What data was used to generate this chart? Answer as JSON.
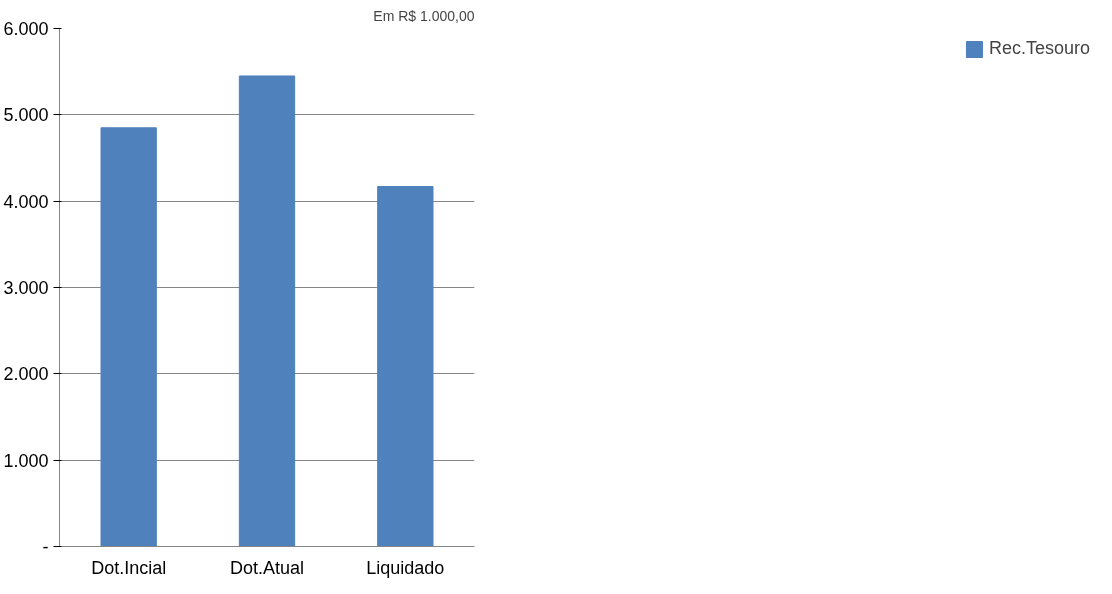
{
  "chart_data": {
    "type": "bar",
    "categories": [
      "Dot.Incial",
      "Dot.Atual",
      "Liquidado"
    ],
    "series": [
      {
        "name": "Rec.Tesouro",
        "color": "#4f81bd",
        "values": [
          4850,
          5450,
          4170
        ]
      }
    ],
    "ylim": [
      0,
      6000
    ],
    "yticks": [
      {
        "value": 0,
        "label": "-"
      },
      {
        "value": 1000,
        "label": "1.000"
      },
      {
        "value": 2000,
        "label": "2.000"
      },
      {
        "value": 3000,
        "label": "3.000"
      },
      {
        "value": 4000,
        "label": "4.000"
      },
      {
        "value": 5000,
        "label": "5.000"
      },
      {
        "value": 6000,
        "label": "6.000"
      }
    ],
    "grid": "y",
    "legend": "right",
    "annotations": [
      "Em R$ 1.000,00"
    ]
  }
}
